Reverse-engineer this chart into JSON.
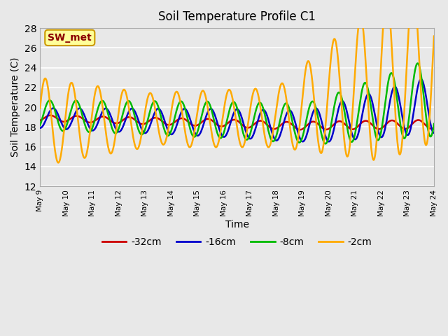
{
  "title": "Soil Temperature Profile C1",
  "xlabel": "Time",
  "ylabel": "Soil Temperature (C)",
  "ylim": [
    12,
    28
  ],
  "yticks": [
    12,
    14,
    16,
    18,
    20,
    22,
    24,
    26,
    28
  ],
  "annotation": "SW_met",
  "background_color": "#e8e8e8",
  "grid_color": "white",
  "series": {
    "-32cm": {
      "color": "#cc0000",
      "linewidth": 1.8
    },
    "-16cm": {
      "color": "#0000cc",
      "linewidth": 1.8
    },
    "-8cm": {
      "color": "#00bb00",
      "linewidth": 1.8
    },
    "-2cm": {
      "color": "#ffaa00",
      "linewidth": 1.8
    }
  },
  "x_tick_days": [
    9,
    10,
    11,
    12,
    13,
    14,
    15,
    16,
    17,
    18,
    19,
    20,
    21,
    22,
    23,
    24
  ],
  "x_tick_labels": [
    "May 9",
    "May 10",
    "May 11",
    "May 12",
    "May 13",
    "May 14",
    "May 15",
    "May 16",
    "May 17",
    "May 18",
    "May 19",
    "May 20",
    "May 21",
    "May 22",
    "May 23",
    "May 24"
  ]
}
